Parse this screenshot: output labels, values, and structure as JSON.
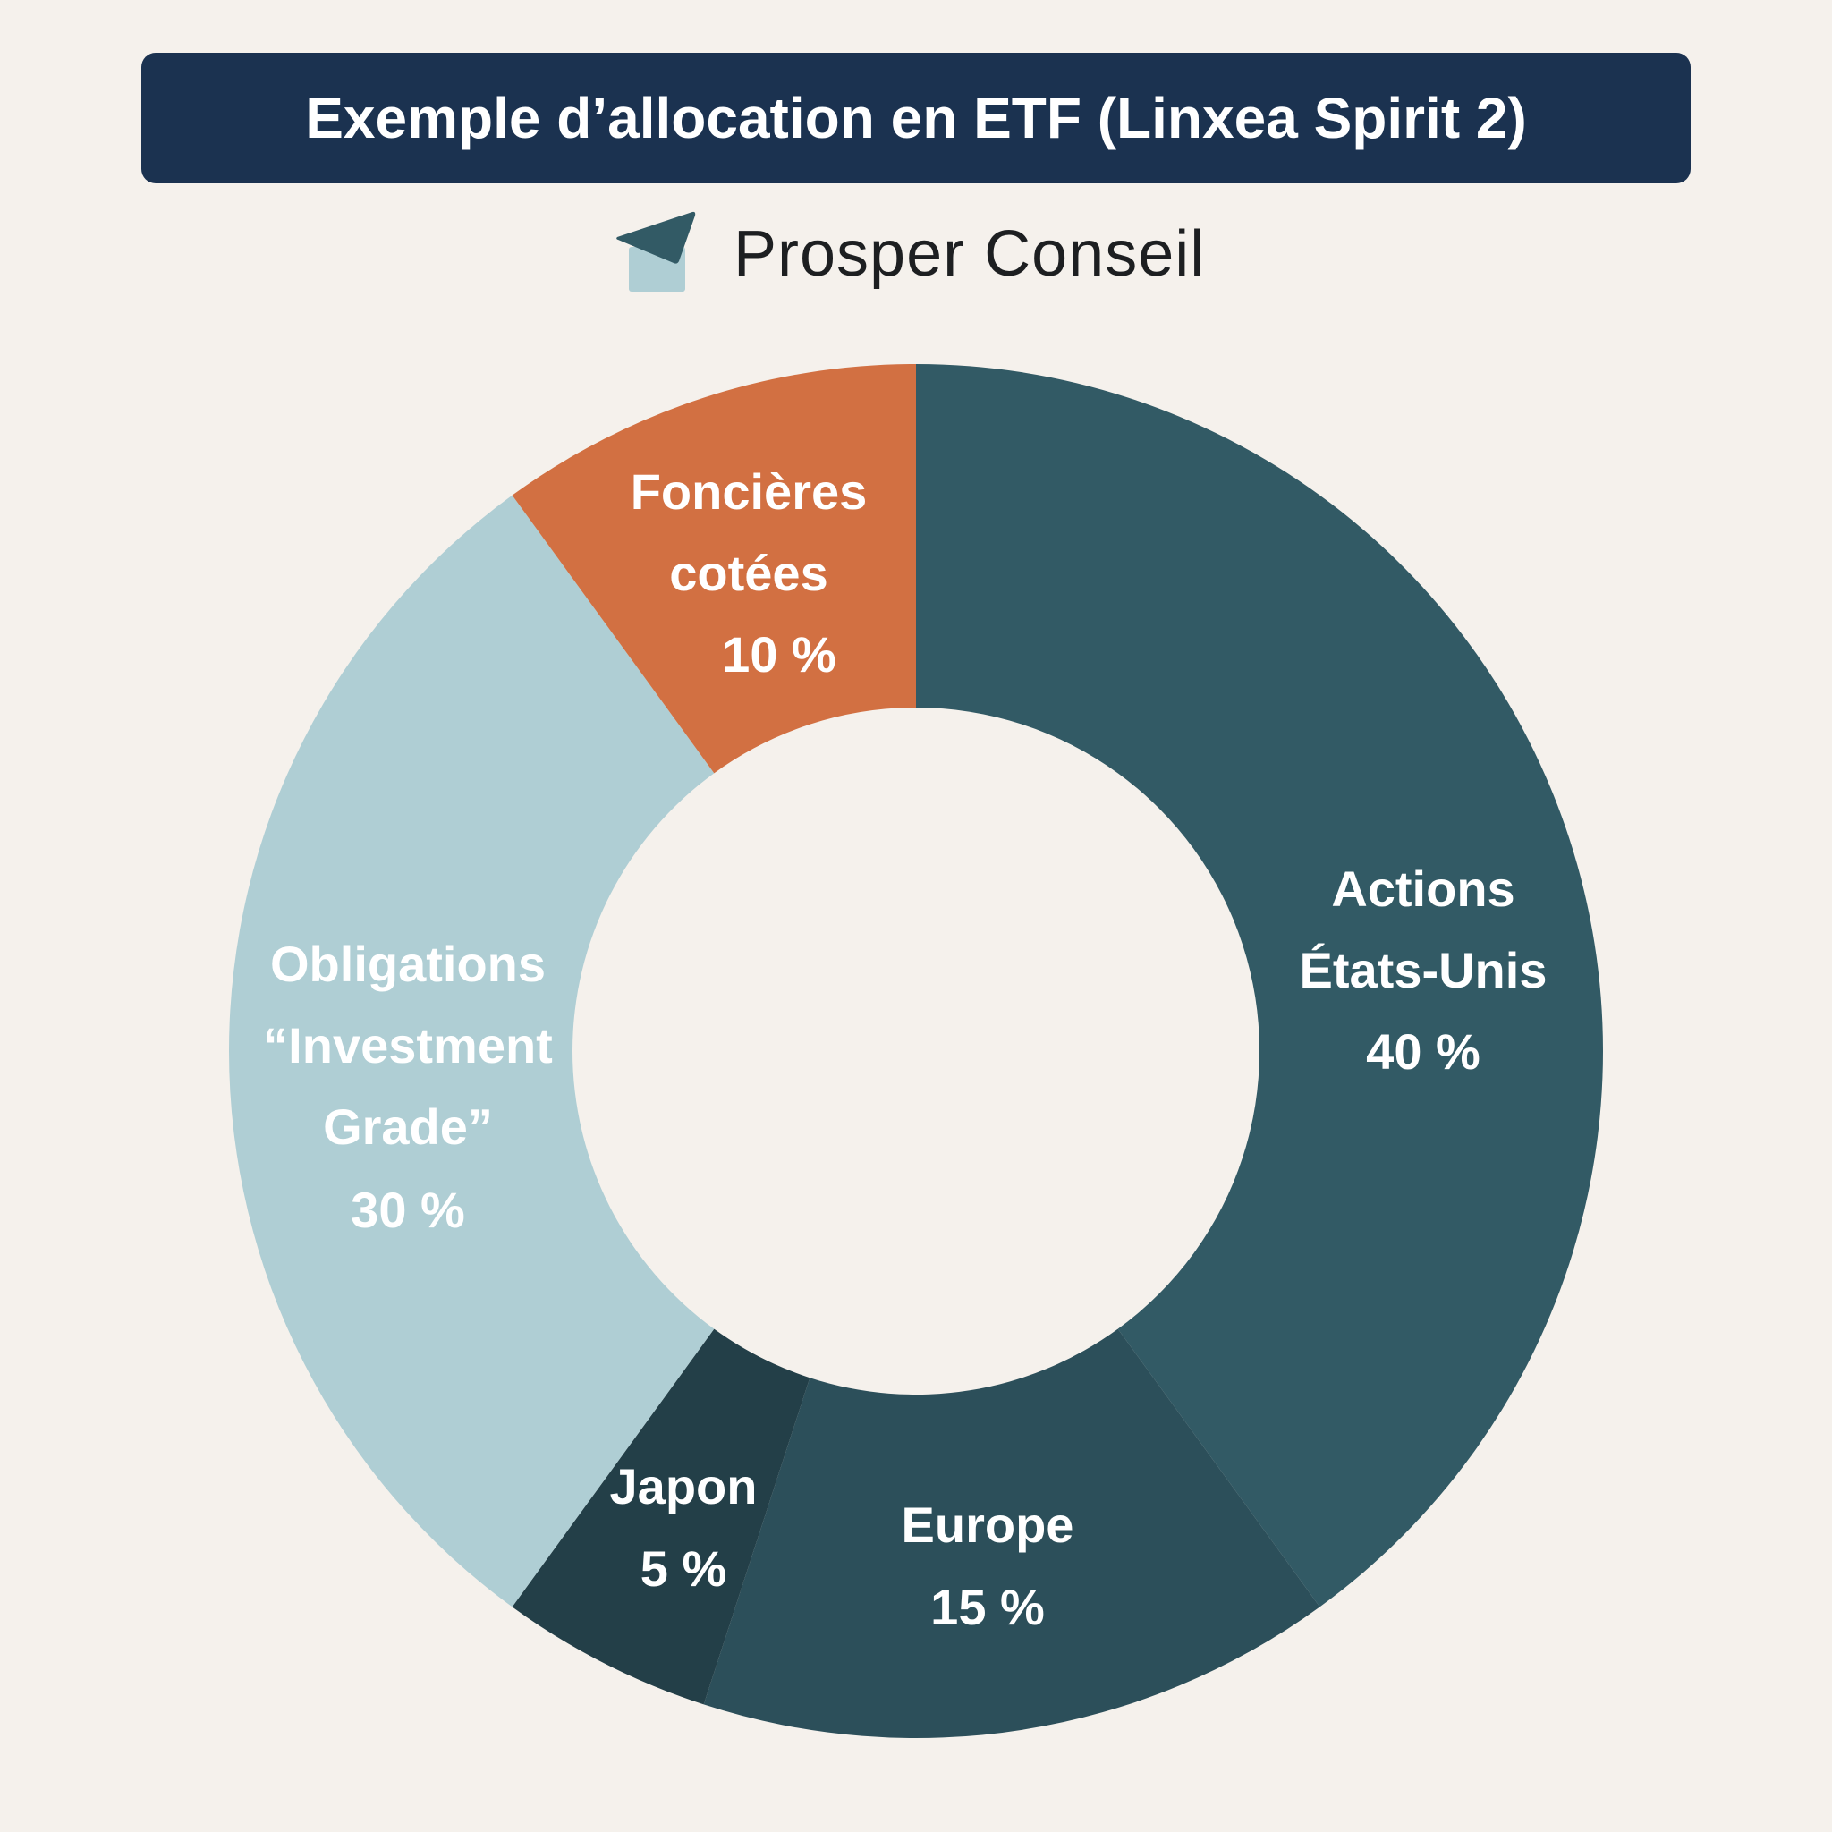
{
  "header": {
    "title": "Exemple d’allocation en ETF (Linxea Spirit 2)"
  },
  "brand": {
    "name": "Prosper Conseil",
    "icon": "paper-plane-envelope-logo"
  },
  "chart_data": {
    "type": "pie",
    "variant": "donut",
    "title": "Exemple d’allocation en ETF (Linxea Spirit 2)",
    "slices": [
      {
        "name": "Actions États-Unis",
        "label_lines": [
          "Actions",
          "États-Unis"
        ],
        "value": 40,
        "value_label": "40 %",
        "color": "#325A65"
      },
      {
        "name": "Europe",
        "label_lines": [
          "Europe"
        ],
        "value": 15,
        "value_label": "15 %",
        "color": "#2C4F5A"
      },
      {
        "name": "Japon",
        "label_lines": [
          "Japon"
        ],
        "value": 5,
        "value_label": "5 %",
        "color": "#233F48"
      },
      {
        "name": "Obligations Investment Grade",
        "label_lines": [
          "Obligations",
          "“Investment",
          "Grade”"
        ],
        "value": 30,
        "value_label": "30 %",
        "color": "#AFCED4"
      },
      {
        "name": "Foncières cotées",
        "label_lines": [
          "Foncières",
          "cotées"
        ],
        "value": 10,
        "value_label": "10 %",
        "color": "#D27042"
      }
    ],
    "start": "top",
    "direction": "clockwise"
  },
  "colors": {
    "background": "#F5F1EC",
    "title_bar": "#1B3250"
  }
}
